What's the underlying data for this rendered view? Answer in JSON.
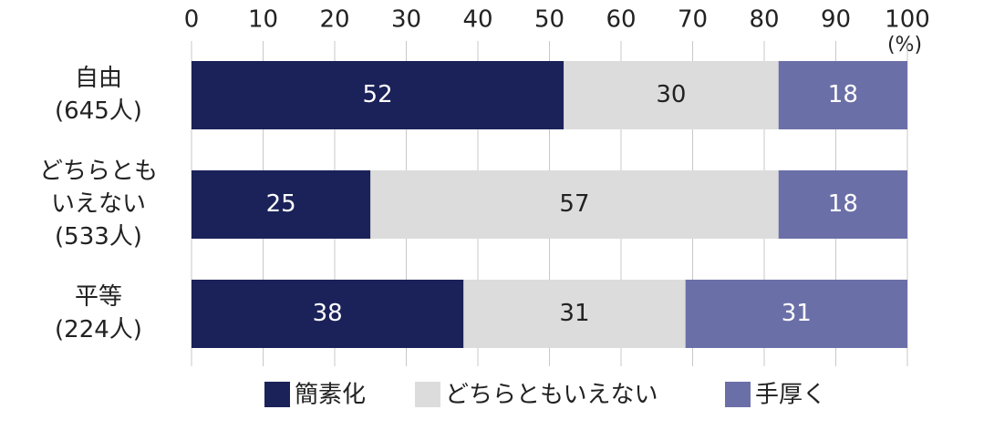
{
  "chart_data": {
    "type": "stacked-bar-horizontal",
    "categories": [
      [
        "自由",
        "(645人)"
      ],
      [
        "どちらとも",
        "いえない",
        "(533人)"
      ],
      [
        "平等",
        "(224人)"
      ]
    ],
    "series": [
      {
        "name": "簡素化",
        "color": "#1b2259",
        "label_color": "#ffffff",
        "values": [
          52,
          25,
          38
        ]
      },
      {
        "name": "どちらともいえない",
        "color": "#dcdcdc",
        "label_color": "#222222",
        "values": [
          30,
          57,
          31
        ]
      },
      {
        "name": "手厚く",
        "color": "#6b6fa8",
        "label_color": "#ffffff",
        "values": [
          18,
          18,
          31
        ]
      }
    ],
    "xlim": [
      0,
      100
    ],
    "xticks": [
      0,
      10,
      20,
      30,
      40,
      50,
      60,
      70,
      80,
      90,
      100
    ],
    "x_unit": "(%)",
    "grid": true
  }
}
